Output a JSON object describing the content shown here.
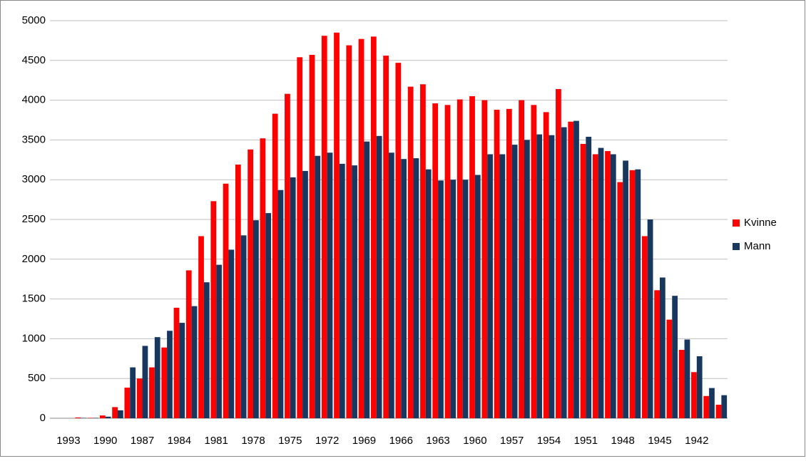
{
  "chart_data": {
    "type": "bar",
    "categories": [
      null,
      1993,
      null,
      null,
      1990,
      null,
      null,
      1987,
      null,
      null,
      1984,
      null,
      null,
      1981,
      null,
      null,
      1978,
      null,
      null,
      1975,
      null,
      null,
      1972,
      null,
      null,
      1969,
      null,
      null,
      1966,
      null,
      null,
      1963,
      null,
      null,
      1960,
      null,
      null,
      1957,
      null,
      null,
      1954,
      null,
      null,
      1951,
      null,
      null,
      1948,
      null,
      null,
      1945,
      null,
      null,
      1942,
      null,
      null
    ],
    "series": [
      {
        "name": "Kvinne",
        "color": "#ff0000",
        "values": [
          0,
          0,
          10,
          5,
          35,
          140,
          385,
          500,
          640,
          890,
          1390,
          1860,
          2290,
          2730,
          2950,
          3190,
          3380,
          3520,
          3830,
          4080,
          4540,
          4570,
          4810,
          4850,
          4690,
          4770,
          4800,
          4560,
          4470,
          4170,
          4200,
          3960,
          3940,
          4010,
          4050,
          4000,
          3880,
          3890,
          4000,
          3940,
          3850,
          4140,
          3730,
          3450,
          3320,
          3360,
          2970,
          3120,
          2290,
          1610,
          1240,
          860,
          580,
          280,
          170
        ]
      },
      {
        "name": "Mann",
        "color": "#17375e",
        "values": [
          0,
          0,
          5,
          5,
          20,
          100,
          640,
          910,
          1020,
          1100,
          1200,
          1410,
          1710,
          1930,
          2120,
          2300,
          2490,
          2580,
          2870,
          3030,
          3110,
          3300,
          3340,
          3200,
          3180,
          3480,
          3550,
          3340,
          3260,
          3270,
          3130,
          2990,
          3000,
          3000,
          3060,
          3320,
          3320,
          3440,
          3500,
          3570,
          3560,
          3660,
          3740,
          3540,
          3400,
          3320,
          3240,
          3130,
          2500,
          1770,
          1540,
          990,
          780,
          380,
          290
        ]
      }
    ],
    "ylim": [
      0,
      5000
    ],
    "yticks": [
      0,
      500,
      1000,
      1500,
      2000,
      2500,
      3000,
      3500,
      4000,
      4500,
      5000
    ],
    "grid": true,
    "legend": "right"
  }
}
